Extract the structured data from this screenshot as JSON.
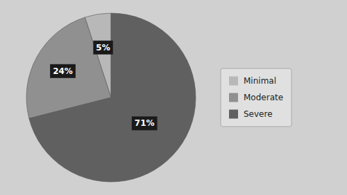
{
  "chart_data": {
    "type": "pie",
    "categories": [
      "Minimal",
      "Moderate",
      "Severe"
    ],
    "values": [
      5,
      24,
      71
    ],
    "value_labels": [
      "5%",
      "24%",
      "71%"
    ],
    "colors": [
      "#b8b8b8",
      "#909090",
      "#606060"
    ],
    "data_labels": true,
    "legend": "right"
  }
}
